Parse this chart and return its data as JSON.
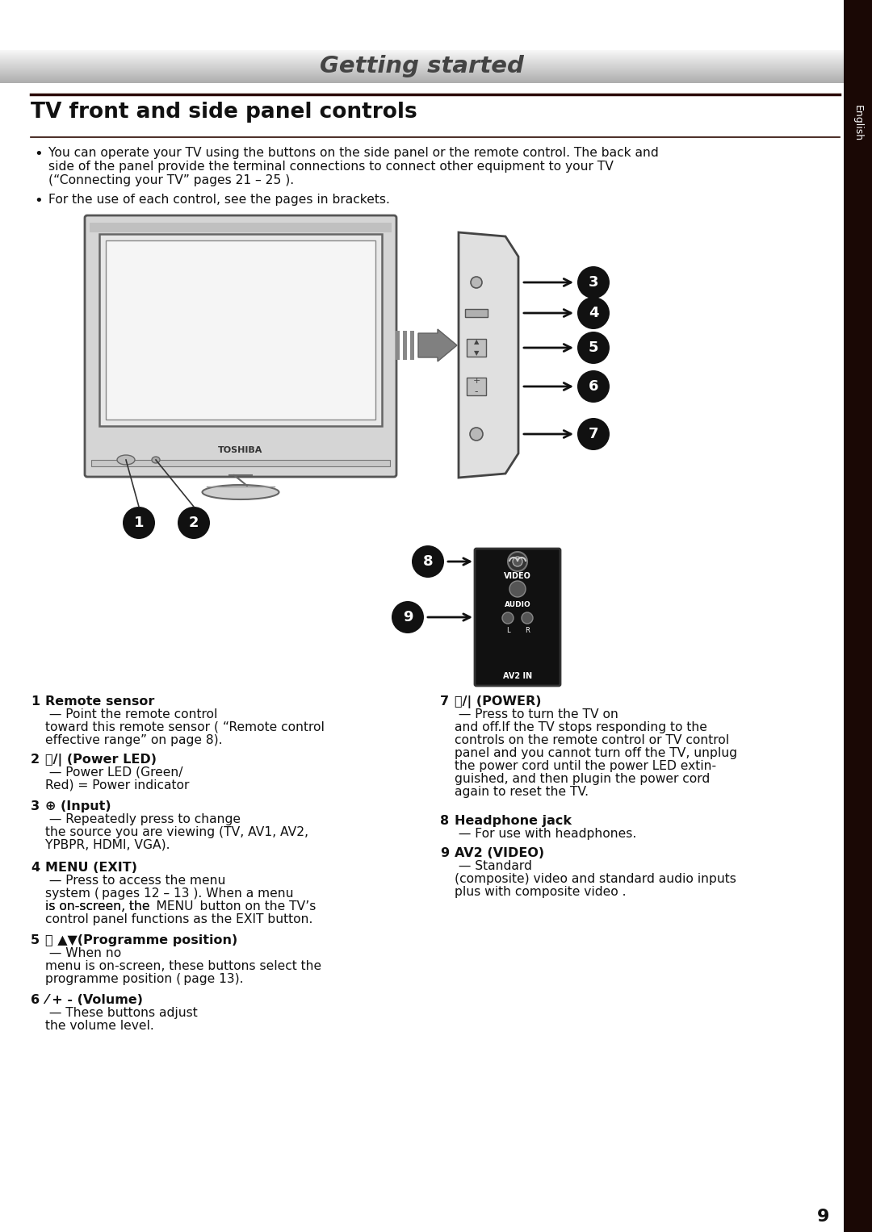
{
  "title": "Getting started",
  "section_title": "TV front and side panel controls",
  "bullet1_line1": "You can operate your TV using the buttons on the side panel or the remote control. The back and",
  "bullet1_line2": "side of the panel provide the terminal connections to connect other equipment to your TV",
  "bullet1_line3": "(“Connecting your TV” pages 21 – 25 ).",
  "bullet2": "For the use of each control, see the pages in brackets.",
  "sidebar_text": "English",
  "page_number": "9",
  "toshiba": "TOSHIBA",
  "bg_color": "#ffffff",
  "sidebar_bg": "#1a0805",
  "header_text_color": "#444444",
  "border_color": "#2a0800",
  "circle_color": "#111111",
  "item1_bold": "Remote sensor",
  "item1_rest1": " — Point the remote control",
  "item1_rest2": "toward this remote sensor ( “Remote control",
  "item1_rest3": "effective range” on page 8).",
  "item2_bold": "⏻/| (Power LED)",
  "item2_rest1": " — Power LED (Green/",
  "item2_rest2": "Red) = Power indicator",
  "item3_bold": "⊕ (Input)",
  "item3_rest1": " — Repeatedly press to change",
  "item3_rest2": "the source you are viewing (TV, AV1, AV2,",
  "item3_rest3": "YPBPR, HDMI, VGA).",
  "item4_bold": "MENU (EXIT)",
  "item4_rest1": " — Press to access the menu",
  "item4_rest2": "system ( pages 12 – 13 ). When a menu",
  "item4_rest3": "is on-screen, the MENU button on the TV’s",
  "item4_rest4": "control panel functions as the EXIT button.",
  "item5_bold": "ⓟ ▲▼(Programme position)",
  "item5_rest1": " — When no",
  "item5_rest2": "menu is on-screen, these buttons select the",
  "item5_rest3": "programme position ( page 13).",
  "item6_bold": "⁄ + - (Volume)",
  "item6_rest1": " — These buttons adjust",
  "item6_rest2": "the volume level.",
  "item7_bold": "⏻/| (POWER)",
  "item7_rest1": " — Press to turn the TV on",
  "item7_rest2": "and off.If the TV stops responding to the",
  "item7_rest3": "controls on the remote control or TV control",
  "item7_rest4": "panel and you cannot turn off the TV, unplug",
  "item7_rest5": "the power cord until the power LED extin-",
  "item7_rest6": "guished, and then plugin the power cord",
  "item7_rest7": "again to reset the TV.",
  "item8_bold": "Headphone jack",
  "item8_rest": " — For use with headphones.",
  "item9_bold": "AV2 (VIDEO)",
  "item9_rest1": " — Standard",
  "item9_rest2": "(composite) video and standard audio inputs",
  "item9_rest3": "plus with composite video .",
  "video_label": "VIDEO",
  "audio_label": "AUDIO",
  "av2in_label": "AV2 IN",
  "l_label": "L",
  "r_label": "R"
}
